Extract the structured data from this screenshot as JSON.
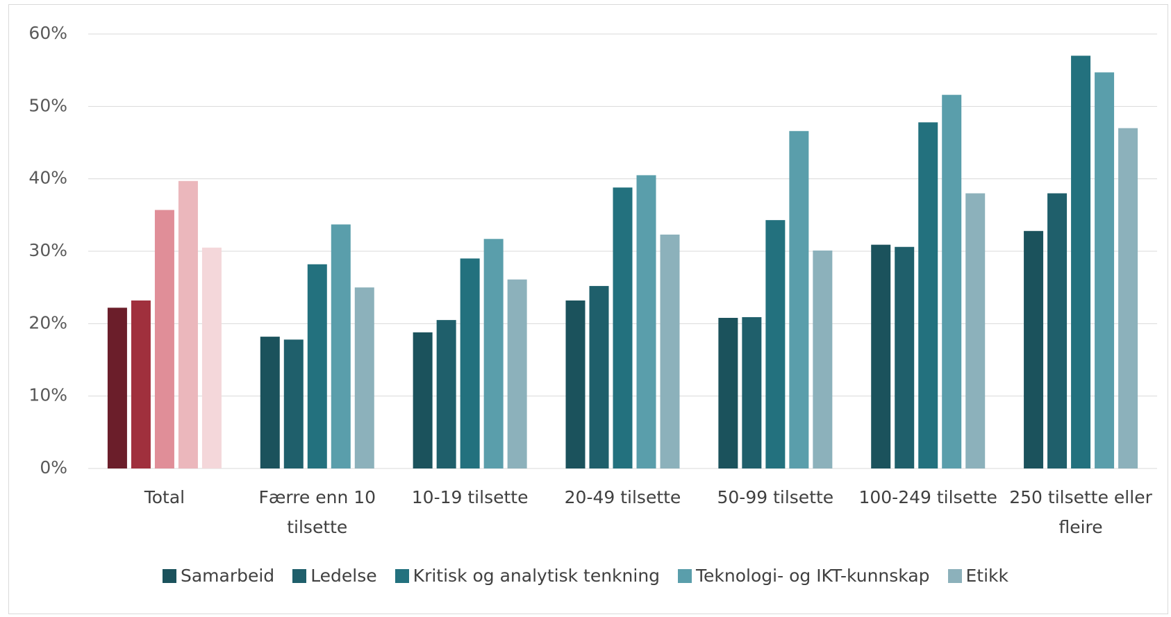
{
  "chart_data": {
    "type": "bar",
    "categories": [
      "Total",
      "Færre enn 10 tilsette",
      "10-19 tilsette",
      "20-49 tilsette",
      "50-99 tilsette",
      "100-249 tilsette",
      "250 tilsette eller fleire"
    ],
    "series": [
      {
        "name": "Samarbeid",
        "color": "#1b525c",
        "colors": [
          "#6b1e2a",
          "#1b525c",
          "#1b525c",
          "#1b525c",
          "#1b525c",
          "#1b525c",
          "#1b525c"
        ],
        "values": [
          22.2,
          18.2,
          18.8,
          23.2,
          20.8,
          30.9,
          32.8
        ]
      },
      {
        "name": "Ledelse",
        "color": "#1f5f6b",
        "colors": [
          "#a0303d",
          "#1f5f6b",
          "#1f5f6b",
          "#1f5f6b",
          "#1f5f6b",
          "#1f5f6b",
          "#1f5f6b"
        ],
        "values": [
          23.2,
          17.8,
          20.5,
          25.2,
          20.9,
          30.6,
          38.0
        ]
      },
      {
        "name": "Kritisk og analytisk tenkning",
        "color": "#23717e",
        "colors": [
          "#e08e98",
          "#23717e",
          "#23717e",
          "#23717e",
          "#23717e",
          "#23717e",
          "#23717e"
        ],
        "values": [
          35.7,
          28.2,
          29.0,
          38.8,
          34.3,
          47.8,
          57.0
        ]
      },
      {
        "name": "Teknologi- og IKT-kunnskap",
        "color": "#5a9eab",
        "colors": [
          "#ebb7bc",
          "#5a9eab",
          "#5a9eab",
          "#5a9eab",
          "#5a9eab",
          "#5a9eab",
          "#5a9eab"
        ],
        "values": [
          39.7,
          33.7,
          31.7,
          40.5,
          46.6,
          51.6,
          54.7
        ]
      },
      {
        "name": "Etikk",
        "color": "#8cb1bb",
        "colors": [
          "#f4d7da",
          "#8cb1bb",
          "#8cb1bb",
          "#8cb1bb",
          "#8cb1bb",
          "#8cb1bb",
          "#8cb1bb"
        ],
        "values": [
          30.5,
          25.0,
          26.1,
          32.3,
          30.1,
          38.0,
          47.0
        ]
      }
    ],
    "ylim": [
      0,
      60
    ],
    "yticks": [
      {
        "value": 0,
        "label": "0%"
      },
      {
        "value": 10,
        "label": "10%"
      },
      {
        "value": 20,
        "label": "20%"
      },
      {
        "value": 30,
        "label": "30%"
      },
      {
        "value": 40,
        "label": "40%"
      },
      {
        "value": 50,
        "label": "50%"
      },
      {
        "value": 60,
        "label": "60%"
      }
    ],
    "grid": true,
    "legend": "bottom"
  }
}
